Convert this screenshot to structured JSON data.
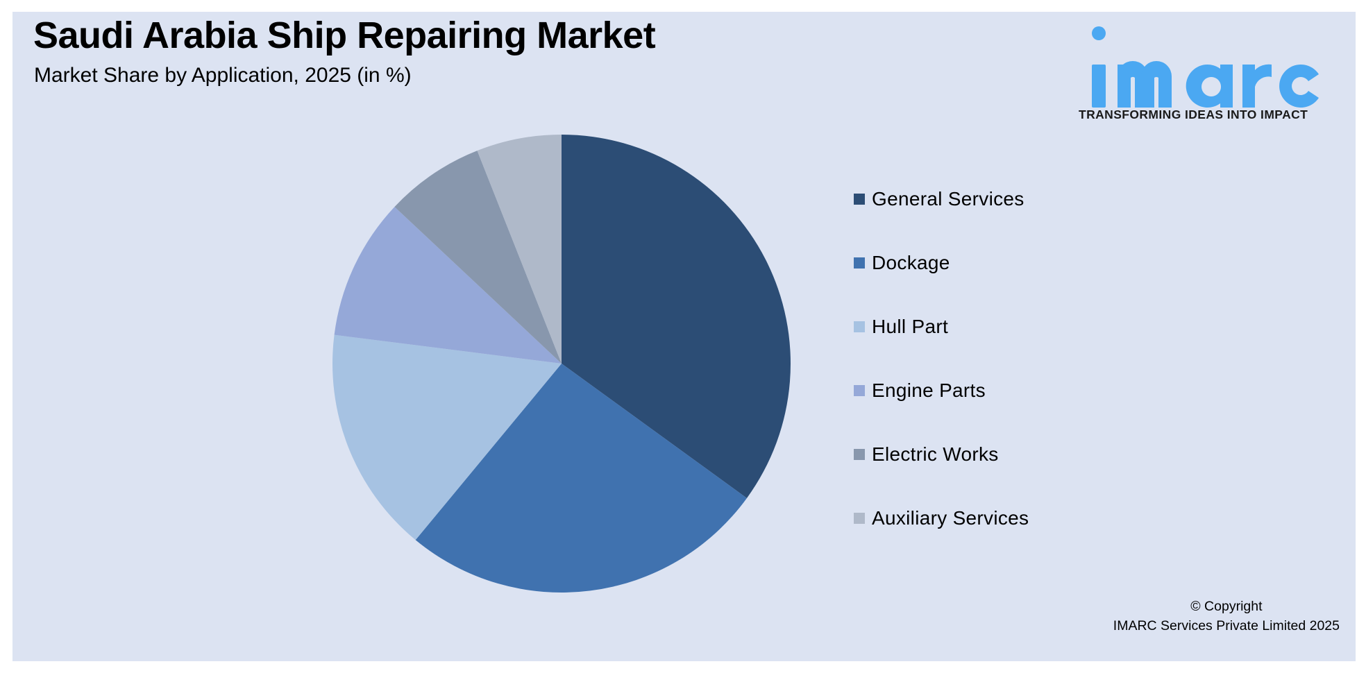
{
  "header": {
    "title": "Saudi Arabia Ship Repairing Market",
    "subtitle": "Market Share by Application, 2025 (in %)"
  },
  "logo": {
    "wordmark": "imarc",
    "tagline": "TRANSFORMING IDEAS INTO IMPACT",
    "color": "#4ba8f2"
  },
  "footer": {
    "copyright_line1": "© Copyright",
    "copyright_line2": "IMARC Services Private Limited 2025"
  },
  "colors": {
    "background": "#dce3f2",
    "General Services": "#2c4d75",
    "Dockage": "#4072af",
    "Hull Part": "#a6c2e2",
    "Engine Parts": "#95a8d8",
    "Electric Works": "#8897ad",
    "Auxiliary Services": "#afb9c9"
  },
  "legend": [
    {
      "label": "General Services",
      "color": "#2c4d75"
    },
    {
      "label": "Dockage",
      "color": "#4072af"
    },
    {
      "label": "Hull Part",
      "color": "#a6c2e2"
    },
    {
      "label": "Engine Parts",
      "color": "#95a8d8"
    },
    {
      "label": "Electric Works",
      "color": "#8897ad"
    },
    {
      "label": "Auxiliary Services",
      "color": "#afb9c9"
    }
  ],
  "chart_data": {
    "type": "pie",
    "title": "Saudi Arabia Ship Repairing Market",
    "subtitle": "Market Share by Application, 2025 (in %)",
    "categories": [
      "General Services",
      "Dockage",
      "Hull Part",
      "Engine Parts",
      "Electric Works",
      "Auxiliary Services"
    ],
    "values": [
      35,
      26,
      16,
      10,
      7,
      6
    ],
    "colors": [
      "#2c4d75",
      "#4072af",
      "#a6c2e2",
      "#95a8d8",
      "#8897ad",
      "#afb9c9"
    ],
    "start_angle": "12 o'clock, clockwise",
    "data_labels": false,
    "legend_position": "right"
  }
}
